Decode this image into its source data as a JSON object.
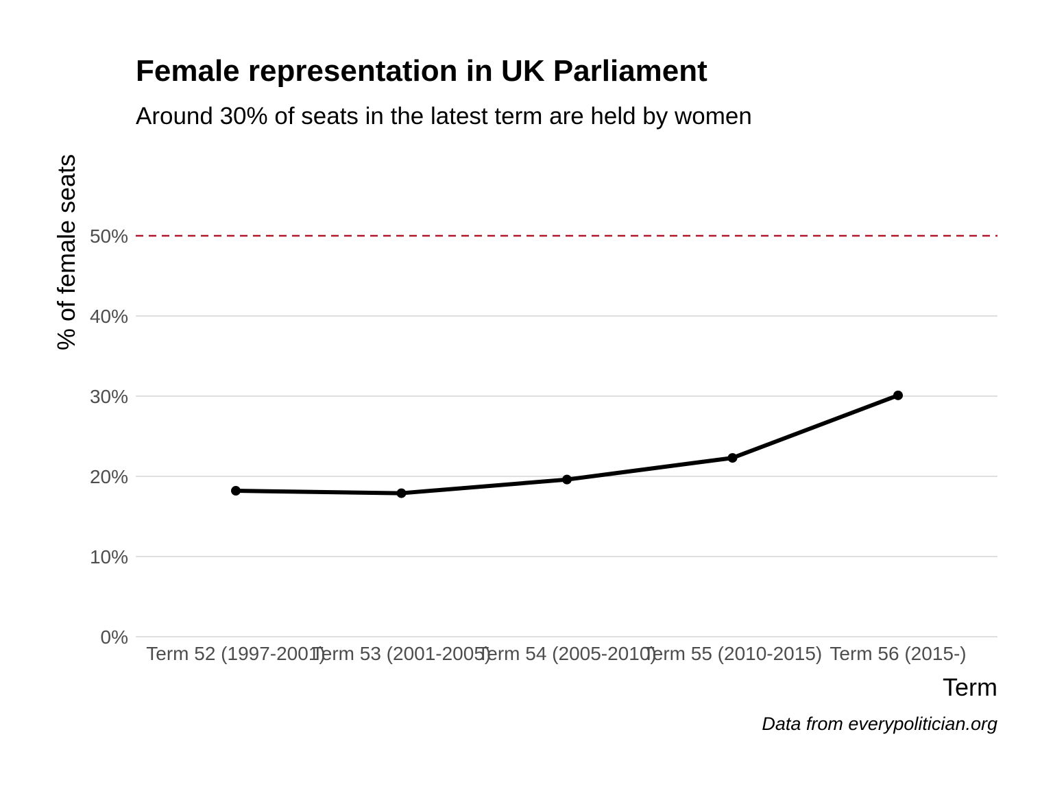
{
  "chart_data": {
    "type": "line",
    "title": "Female representation in UK Parliament",
    "subtitle": "Around 30% of seats in the latest term are held by women",
    "xlabel": "Term",
    "ylabel": "% of female seats",
    "caption": "Data from everypolitician.org",
    "categories": [
      "Term 52 (1997-2001)",
      "Term 53 (2001-2005)",
      "Term 54 (2005-2010)",
      "Term 55 (2010-2015)",
      "Term 56 (2015-)"
    ],
    "series": [
      {
        "values": [
          18.2,
          17.9,
          19.6,
          22.3,
          30.1
        ],
        "color": "#000000"
      }
    ],
    "ylim": [
      0,
      50
    ],
    "yticks": [
      0,
      10,
      20,
      30,
      40,
      50
    ],
    "ytick_labels": [
      "0%",
      "10%",
      "20%",
      "30%",
      "40%",
      "50%"
    ],
    "reference_line": {
      "value": 50,
      "style": "dashed",
      "color": "#b2182b"
    },
    "grid": true,
    "legend": "none"
  }
}
